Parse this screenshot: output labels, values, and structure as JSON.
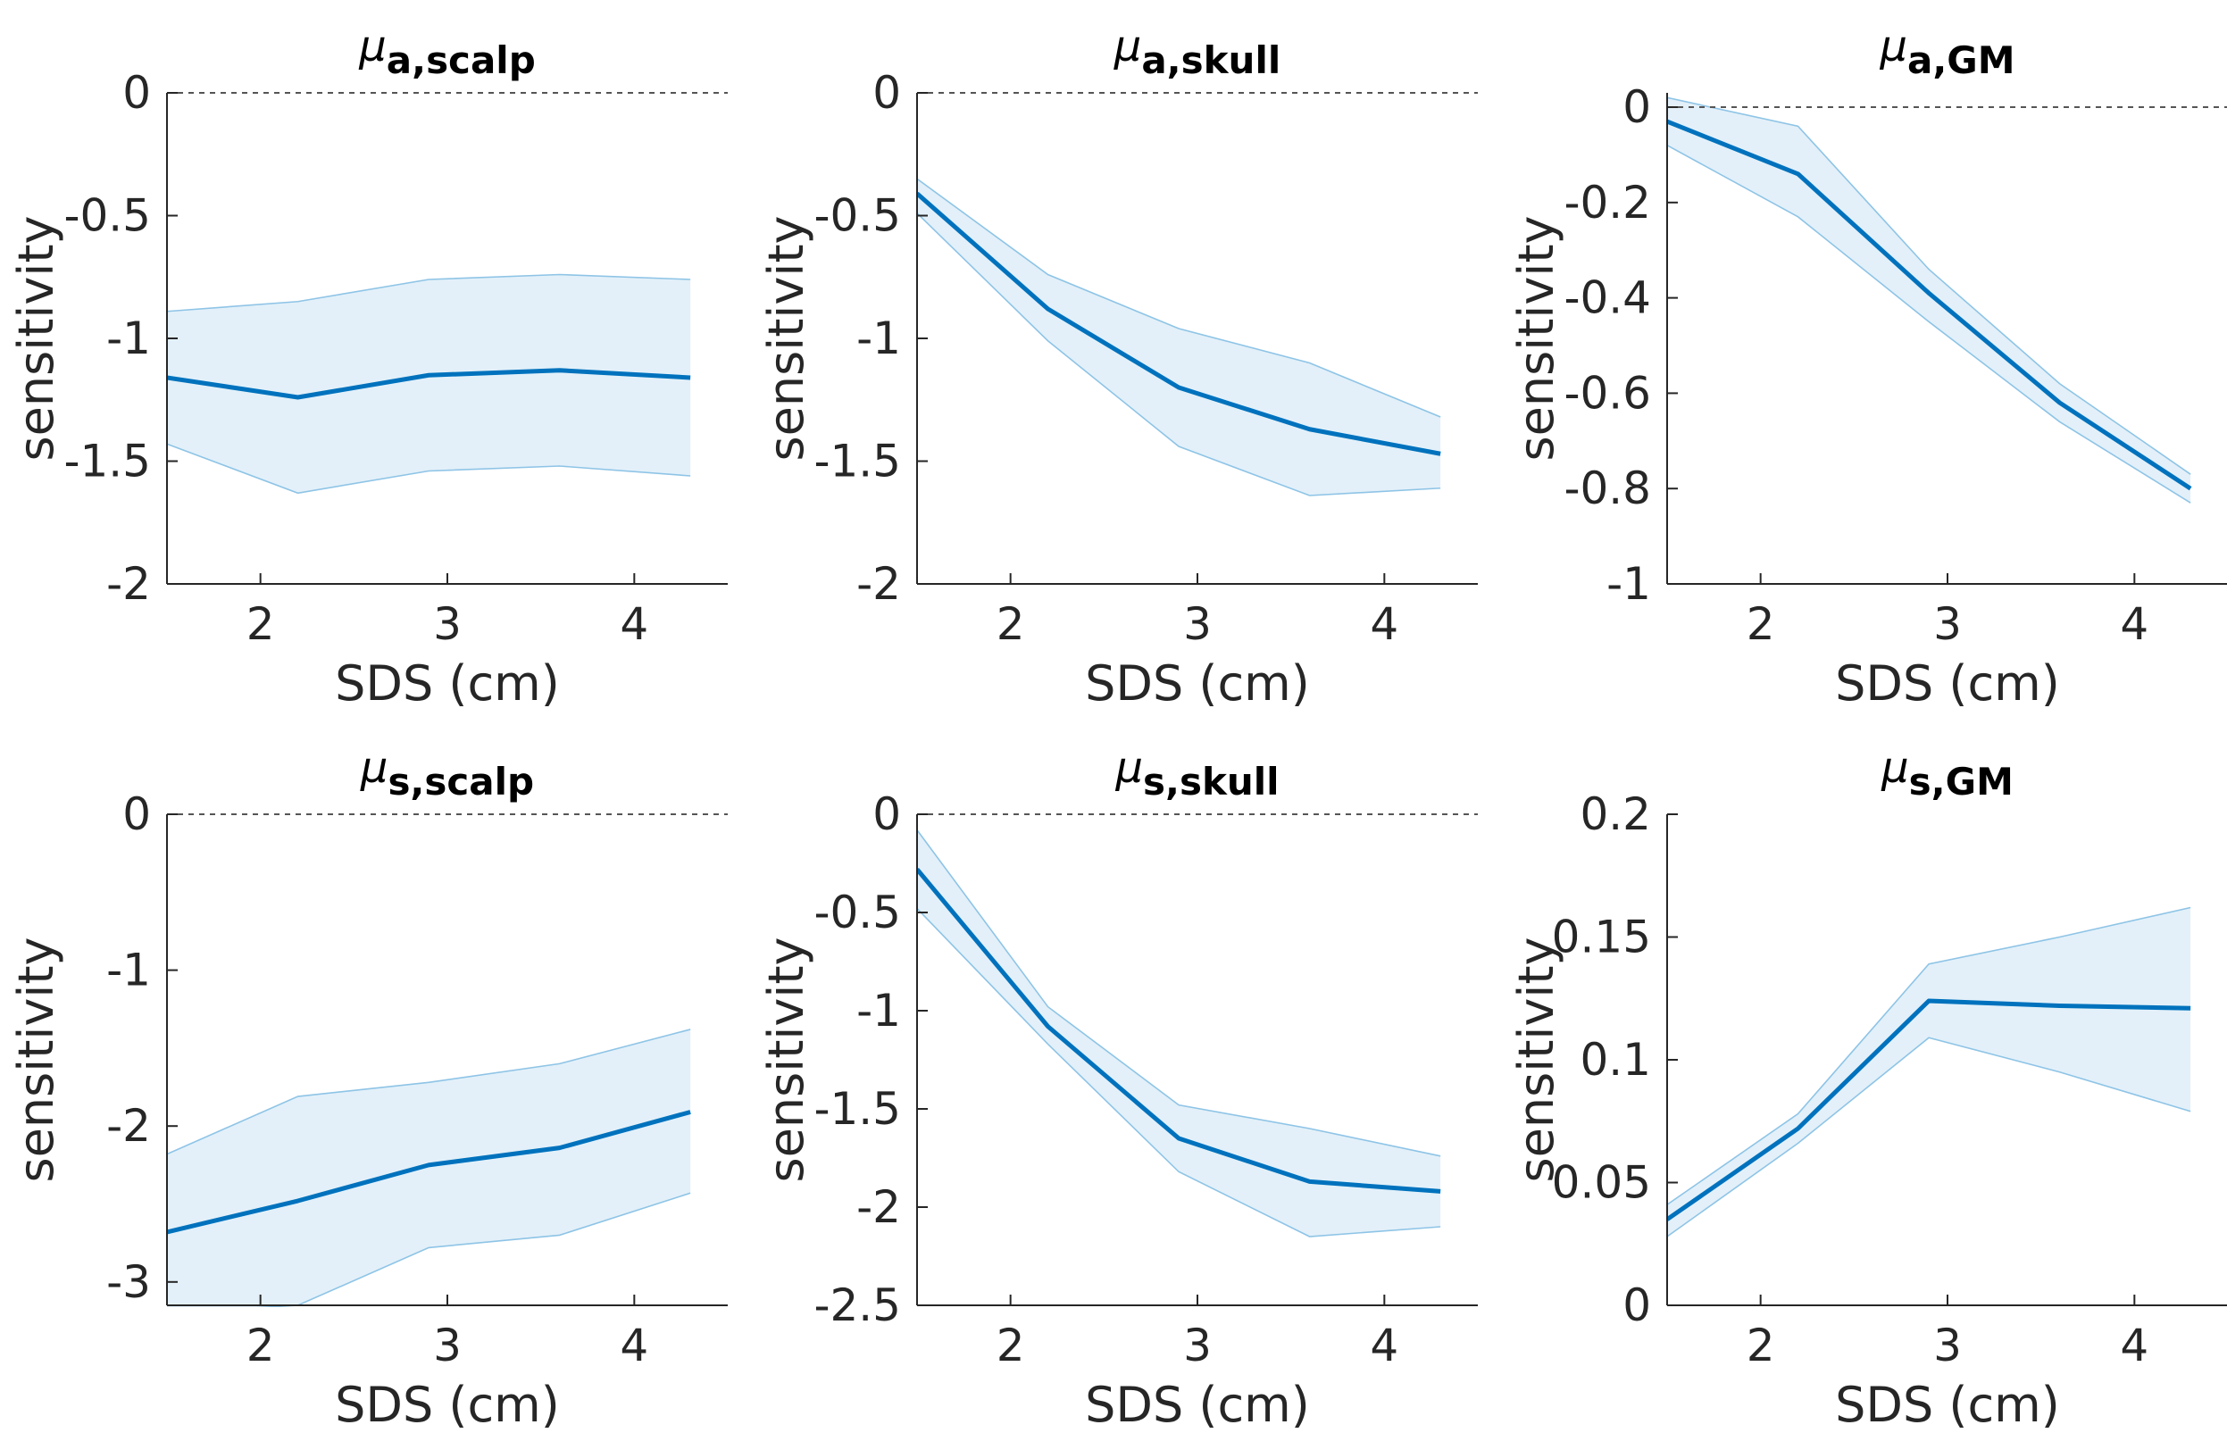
{
  "figure": {
    "colors": {
      "line": "#0072BD",
      "band_fill": "#E3F0F9",
      "band_edge": "#8EC4E6",
      "axis": "#262626",
      "zero_line": "#555555"
    }
  },
  "chart_data": [
    {
      "type": "line",
      "title": "μa,scalp",
      "title_symbol": "μ",
      "title_subscript": "a,scalp",
      "xlabel": "SDS (cm)",
      "ylabel": "sensitivity",
      "xlim": [
        1.5,
        4.5
      ],
      "ylim": [
        -2,
        0
      ],
      "xticks": [
        2,
        3,
        4
      ],
      "xtick_labels": [
        "2",
        "3",
        "4"
      ],
      "yticks": [
        0,
        -0.5,
        -1,
        -1.5,
        -2
      ],
      "ytick_labels": [
        "0",
        "-0.5",
        "-1",
        "-1.5",
        "-2"
      ],
      "zero_line": true,
      "x": [
        1.5,
        2.2,
        2.9,
        3.6,
        4.3
      ],
      "series": [
        {
          "role": "mean",
          "values": [
            -1.16,
            -1.24,
            -1.15,
            -1.13,
            -1.16
          ]
        },
        {
          "role": "upper",
          "values": [
            -0.89,
            -0.85,
            -0.76,
            -0.74,
            -0.76
          ]
        },
        {
          "role": "lower",
          "values": [
            -1.43,
            -1.63,
            -1.54,
            -1.52,
            -1.56
          ]
        }
      ]
    },
    {
      "type": "line",
      "title": "μa,skull",
      "title_symbol": "μ",
      "title_subscript": "a,skull",
      "xlabel": "SDS (cm)",
      "ylabel": "sensitivity",
      "xlim": [
        1.5,
        4.5
      ],
      "ylim": [
        -2,
        0
      ],
      "xticks": [
        2,
        3,
        4
      ],
      "xtick_labels": [
        "2",
        "3",
        "4"
      ],
      "yticks": [
        0,
        -0.5,
        -1,
        -1.5,
        -2
      ],
      "ytick_labels": [
        "0",
        "-0.5",
        "-1",
        "-1.5",
        "-2"
      ],
      "zero_line": true,
      "x": [
        1.5,
        2.2,
        2.9,
        3.6,
        4.3
      ],
      "series": [
        {
          "role": "mean",
          "values": [
            -0.41,
            -0.88,
            -1.2,
            -1.37,
            -1.47
          ]
        },
        {
          "role": "upper",
          "values": [
            -0.35,
            -0.74,
            -0.96,
            -1.1,
            -1.32
          ]
        },
        {
          "role": "lower",
          "values": [
            -0.49,
            -1.01,
            -1.44,
            -1.64,
            -1.61
          ]
        }
      ]
    },
    {
      "type": "line",
      "title": "μa,GM",
      "title_symbol": "μ",
      "title_subscript": "a,GM",
      "xlabel": "SDS (cm)",
      "ylabel": "sensitivity",
      "xlim": [
        1.5,
        4.5
      ],
      "ylim": [
        -1,
        0.03
      ],
      "xticks": [
        2,
        3,
        4
      ],
      "xtick_labels": [
        "2",
        "3",
        "4"
      ],
      "yticks": [
        0,
        -0.2,
        -0.4,
        -0.6,
        -0.8,
        -1
      ],
      "ytick_labels": [
        "0",
        "-0.2",
        "-0.4",
        "-0.6",
        "-0.8",
        "-1"
      ],
      "zero_line": true,
      "x": [
        1.5,
        2.2,
        2.9,
        3.6,
        4.3
      ],
      "series": [
        {
          "role": "mean",
          "values": [
            -0.03,
            -0.14,
            -0.39,
            -0.62,
            -0.8
          ]
        },
        {
          "role": "upper",
          "values": [
            0.02,
            -0.04,
            -0.34,
            -0.58,
            -0.77
          ]
        },
        {
          "role": "lower",
          "values": [
            -0.08,
            -0.23,
            -0.45,
            -0.66,
            -0.83
          ]
        }
      ]
    },
    {
      "type": "line",
      "title": "μs,scalp",
      "title_symbol": "μ",
      "title_subscript": "s,scalp",
      "xlabel": "SDS (cm)",
      "ylabel": "sensitivity",
      "xlim": [
        1.5,
        4.5
      ],
      "ylim": [
        -3.15,
        0
      ],
      "xticks": [
        2,
        3,
        4
      ],
      "xtick_labels": [
        "2",
        "3",
        "4"
      ],
      "yticks": [
        0,
        -1,
        -2,
        -3
      ],
      "ytick_labels": [
        "0",
        "-1",
        "-2",
        "-3"
      ],
      "zero_line": true,
      "x": [
        1.5,
        2.2,
        2.9,
        3.6,
        4.3
      ],
      "series": [
        {
          "role": "mean",
          "values": [
            -2.68,
            -2.48,
            -2.25,
            -2.14,
            -1.91
          ]
        },
        {
          "role": "upper",
          "values": [
            -2.18,
            -1.81,
            -1.72,
            -1.6,
            -1.38
          ]
        },
        {
          "role": "lower",
          "values": [
            -3.2,
            -3.15,
            -2.78,
            -2.7,
            -2.43
          ]
        }
      ]
    },
    {
      "type": "line",
      "title": "μs,skull",
      "title_symbol": "μ",
      "title_subscript": "s,skull",
      "xlabel": "SDS (cm)",
      "ylabel": "sensitivity",
      "xlim": [
        1.5,
        4.5
      ],
      "ylim": [
        -2.5,
        0
      ],
      "xticks": [
        2,
        3,
        4
      ],
      "xtick_labels": [
        "2",
        "3",
        "4"
      ],
      "yticks": [
        0,
        -0.5,
        -1,
        -1.5,
        -2,
        -2.5
      ],
      "ytick_labels": [
        "0",
        "-0.5",
        "-1",
        "-1.5",
        "-2",
        "-2.5"
      ],
      "zero_line": true,
      "x": [
        1.5,
        2.2,
        2.9,
        3.6,
        4.3
      ],
      "series": [
        {
          "role": "mean",
          "values": [
            -0.28,
            -1.08,
            -1.65,
            -1.87,
            -1.92
          ]
        },
        {
          "role": "upper",
          "values": [
            -0.08,
            -0.98,
            -1.48,
            -1.6,
            -1.74
          ]
        },
        {
          "role": "lower",
          "values": [
            -0.48,
            -1.17,
            -1.82,
            -2.15,
            -2.1
          ]
        }
      ]
    },
    {
      "type": "line",
      "title": "μs,GM",
      "title_symbol": "μ",
      "title_subscript": "s,GM",
      "xlabel": "SDS (cm)",
      "ylabel": "sensitivity",
      "xlim": [
        1.5,
        4.5
      ],
      "ylim": [
        0,
        0.2
      ],
      "xticks": [
        2,
        3,
        4
      ],
      "xtick_labels": [
        "2",
        "3",
        "4"
      ],
      "yticks": [
        0,
        0.05,
        0.1,
        0.15,
        0.2
      ],
      "ytick_labels": [
        "0",
        "0.05",
        "0.1",
        "0.15",
        "0.2"
      ],
      "zero_line": true,
      "x": [
        1.5,
        2.2,
        2.9,
        3.6,
        4.3
      ],
      "series": [
        {
          "role": "mean",
          "values": [
            0.035,
            0.072,
            0.124,
            0.122,
            0.121
          ]
        },
        {
          "role": "upper",
          "values": [
            0.041,
            0.078,
            0.139,
            0.15,
            0.162
          ]
        },
        {
          "role": "lower",
          "values": [
            0.028,
            0.066,
            0.109,
            0.095,
            0.079
          ]
        }
      ]
    }
  ]
}
